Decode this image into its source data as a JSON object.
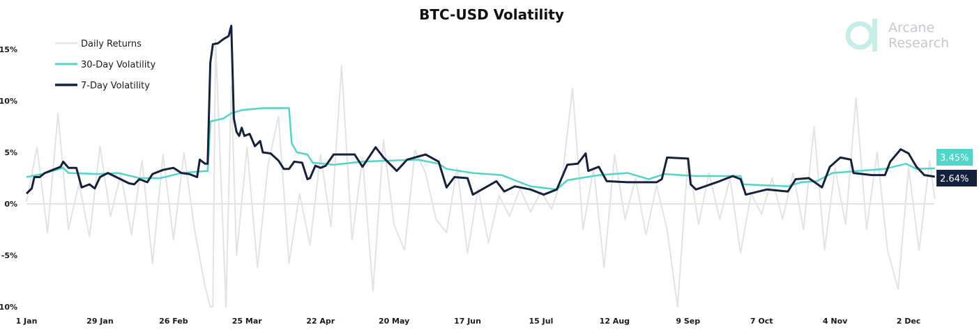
{
  "chart_data": {
    "type": "line",
    "title": "BTC-USD Volatility",
    "xlabel": "",
    "ylabel": "",
    "x_ticks": [
      "1 Jan",
      "29 Jan",
      "26 Feb",
      "25 Mar",
      "22 Apr",
      "20 May",
      "17 Jun",
      "15 Jul",
      "12 Aug",
      "9 Sep",
      "7 Oct",
      "4 Nov",
      "2 Dec"
    ],
    "y_ticks": [
      "-10%",
      "-5%",
      "0%",
      "5%",
      "10%",
      "15%"
    ],
    "y_tick_values": [
      -10,
      -5,
      0,
      5,
      10,
      15
    ],
    "ylim": [
      -10,
      17.5
    ],
    "xlim": [
      "1 Jan",
      "12 Dec"
    ],
    "grid": false,
    "legend_position": "top-left",
    "series": [
      {
        "name": "Daily Returns",
        "color": "#e3e3e3",
        "points": [
          [
            "1 Jan",
            0.2
          ],
          [
            "5 Jan",
            5.5
          ],
          [
            "9 Jan",
            -2.8
          ],
          [
            "13 Jan",
            8.8
          ],
          [
            "17 Jan",
            -2.5
          ],
          [
            "21 Jan",
            2.0
          ],
          [
            "25 Jan",
            -3.2
          ],
          [
            "29 Jan",
            5.6
          ],
          [
            "2 Feb",
            -1.2
          ],
          [
            "6 Feb",
            3.0
          ],
          [
            "10 Feb",
            -3.0
          ],
          [
            "14 Feb",
            4.2
          ],
          [
            "18 Feb",
            -5.8
          ],
          [
            "22 Feb",
            4.8
          ],
          [
            "26 Feb",
            -3.5
          ],
          [
            "1 Mar",
            5.0
          ],
          [
            "5 Mar",
            -2.5
          ],
          [
            "9 Mar",
            -8.0
          ],
          [
            "11 Mar",
            -10
          ],
          [
            "12 Mar",
            -10
          ],
          [
            "13 Mar",
            16
          ],
          [
            "17 Mar",
            -10
          ],
          [
            "19 Mar",
            11.5
          ],
          [
            "21 Mar",
            -5
          ],
          [
            "25 Mar",
            5.5
          ],
          [
            "29 Mar",
            -6.2
          ],
          [
            "2 Apr",
            3.8
          ],
          [
            "6 Apr",
            8.5
          ],
          [
            "10 Apr",
            -5.8
          ],
          [
            "14 Apr",
            1
          ],
          [
            "18 Apr",
            -4
          ],
          [
            "22 Apr",
            4.8
          ],
          [
            "26 Apr",
            -2.2
          ],
          [
            "30 Apr",
            13.4
          ],
          [
            "4 May",
            -3.5
          ],
          [
            "8 May",
            4.5
          ],
          [
            "12 May",
            -8.5
          ],
          [
            "16 May",
            6.2
          ],
          [
            "20 May",
            -2
          ],
          [
            "24 May",
            -4.5
          ],
          [
            "28 May",
            5.2
          ],
          [
            "1 Jun",
            3
          ],
          [
            "5 Jun",
            -1.5
          ],
          [
            "9 Jun",
            -2.8
          ],
          [
            "13 Jun",
            3.5
          ],
          [
            "17 Jun",
            -4.8
          ],
          [
            "21 Jun",
            1.5
          ],
          [
            "25 Jun",
            -3.8
          ],
          [
            "29 Jun",
            0.8
          ],
          [
            "3 Jul",
            -1.2
          ],
          [
            "7 Jul",
            1.5
          ],
          [
            "11 Jul",
            -0.8
          ],
          [
            "15 Jul",
            1.2
          ],
          [
            "19 Jul",
            -0.5
          ],
          [
            "23 Jul",
            2.5
          ],
          [
            "27 Jul",
            11.2
          ],
          [
            "31 Jul",
            -2.5
          ],
          [
            "4 Aug",
            3.5
          ],
          [
            "8 Aug",
            -6.2
          ],
          [
            "12 Aug",
            4.8
          ],
          [
            "16 Aug",
            -1.5
          ],
          [
            "20 Aug",
            2.5
          ],
          [
            "24 Aug",
            -3
          ],
          [
            "28 Aug",
            1.8
          ],
          [
            "1 Sep",
            -2.5
          ],
          [
            "5 Sep",
            -10
          ],
          [
            "9 Sep",
            4.5
          ],
          [
            "13 Sep",
            -2
          ],
          [
            "17 Sep",
            3
          ],
          [
            "21 Sep",
            -1.5
          ],
          [
            "25 Sep",
            2.5
          ],
          [
            "29 Sep",
            -4.8
          ],
          [
            "3 Oct",
            1
          ],
          [
            "7 Oct",
            -1
          ],
          [
            "11 Oct",
            2.5
          ],
          [
            "15 Oct",
            -1.5
          ],
          [
            "19 Oct",
            3
          ],
          [
            "23 Oct",
            -2.5
          ],
          [
            "27 Oct",
            7.5
          ],
          [
            "31 Oct",
            -4.5
          ],
          [
            "4 Nov",
            3.5
          ],
          [
            "8 Nov",
            -2
          ],
          [
            "12 Nov",
            10.3
          ],
          [
            "16 Nov",
            -2.5
          ],
          [
            "20 Nov",
            5
          ],
          [
            "24 Nov",
            -4.5
          ],
          [
            "28 Nov",
            -8.3
          ],
          [
            "2 Dec",
            3.5
          ],
          [
            "6 Dec",
            -4.5
          ],
          [
            "10 Dec",
            4.2
          ],
          [
            "12 Dec",
            0.5
          ]
        ]
      },
      {
        "name": "30-Day Volatility",
        "color": "#4fd6c8",
        "points": [
          [
            "1 Jan",
            2.6
          ],
          [
            "7 Jan",
            2.9
          ],
          [
            "15 Jan",
            3.5
          ],
          [
            "17 Jan",
            3.0
          ],
          [
            "28 Jan",
            2.9
          ],
          [
            "5 Feb",
            3.0
          ],
          [
            "13 Feb",
            2.5
          ],
          [
            "21 Feb",
            2.5
          ],
          [
            "29 Feb",
            3.0
          ],
          [
            "10 Mar",
            3.2
          ],
          [
            "11 Mar",
            8.0
          ],
          [
            "16 Mar",
            8.3
          ],
          [
            "19 Mar",
            8.8
          ],
          [
            "23 Mar",
            9.1
          ],
          [
            "31 Mar",
            9.3
          ],
          [
            "6 Apr",
            9.3
          ],
          [
            "10 Apr",
            9.3
          ],
          [
            "11 Apr",
            5.9
          ],
          [
            "13 Apr",
            5.0
          ],
          [
            "17 Apr",
            4.8
          ],
          [
            "19 Apr",
            4.0
          ],
          [
            "27 Apr",
            3.8
          ],
          [
            "8 May",
            4.1
          ],
          [
            "19 May",
            4.2
          ],
          [
            "29 May",
            4.3
          ],
          [
            "6 Jun",
            3.9
          ],
          [
            "9 Jun",
            3.4
          ],
          [
            "19 Jun",
            3.0
          ],
          [
            "30 Jun",
            2.8
          ],
          [
            "11 Jul",
            1.7
          ],
          [
            "21 Jul",
            1.4
          ],
          [
            "25 Jul",
            2.3
          ],
          [
            "6 Aug",
            2.8
          ],
          [
            "17 Aug",
            3.0
          ],
          [
            "25 Aug",
            2.4
          ],
          [
            "31 Aug",
            2.9
          ],
          [
            "12 Sep",
            2.7
          ],
          [
            "29 Sep",
            2.7
          ],
          [
            "30 Sep",
            1.9
          ],
          [
            "17 Oct",
            1.7
          ],
          [
            "22 Oct",
            2.1
          ],
          [
            "28 Oct",
            2.2
          ],
          [
            "3 Nov",
            3.0
          ],
          [
            "13 Nov",
            3.2
          ],
          [
            "23 Nov",
            3.4
          ],
          [
            "1 Dec",
            3.9
          ],
          [
            "5 Dec",
            3.4
          ],
          [
            "12 Dec",
            3.45
          ]
        ]
      },
      {
        "name": "7-Day Volatility",
        "color": "#14213d",
        "points": [
          [
            "1 Jan",
            1.0
          ],
          [
            "3 Jan",
            1.5
          ],
          [
            "4 Jan",
            2.6
          ],
          [
            "6 Jan",
            2.6
          ],
          [
            "8 Jan",
            3.0
          ],
          [
            "12 Jan",
            3.4
          ],
          [
            "14 Jan",
            3.6
          ],
          [
            "15 Jan",
            4.1
          ],
          [
            "17 Jan",
            3.5
          ],
          [
            "20 Jan",
            3.5
          ],
          [
            "22 Jan",
            1.6
          ],
          [
            "25 Jan",
            1.9
          ],
          [
            "27 Jan",
            1.5
          ],
          [
            "29 Jan",
            2.6
          ],
          [
            "1 Feb",
            3.0
          ],
          [
            "5 Feb",
            2.5
          ],
          [
            "9 Feb",
            2.0
          ],
          [
            "11 Feb",
            1.9
          ],
          [
            "13 Feb",
            2.4
          ],
          [
            "16 Feb",
            2.1
          ],
          [
            "18 Feb",
            2.9
          ],
          [
            "22 Feb",
            3.3
          ],
          [
            "26 Feb",
            3.5
          ],
          [
            "29 Feb",
            3.0
          ],
          [
            "3 Mar",
            2.9
          ],
          [
            "6 Mar",
            2.6
          ],
          [
            "7 Mar",
            4.3
          ],
          [
            "9 Mar",
            3.9
          ],
          [
            "10 Mar",
            3.9
          ],
          [
            "11 Mar",
            13.7
          ],
          [
            "12 Mar",
            15.5
          ],
          [
            "14 Mar",
            15.6
          ],
          [
            "16 Mar",
            16.0
          ],
          [
            "18 Mar",
            16.3
          ],
          [
            "19 Mar",
            17.3
          ],
          [
            "20 Mar",
            8.3
          ],
          [
            "21 Mar",
            7.0
          ],
          [
            "22 Mar",
            6.6
          ],
          [
            "23 Mar",
            7.4
          ],
          [
            "24 Mar",
            6.6
          ],
          [
            "26 Mar",
            6.8
          ],
          [
            "28 Mar",
            5.6
          ],
          [
            "30 Mar",
            6.1
          ],
          [
            "31 Mar",
            5.0
          ],
          [
            "3 Apr",
            4.9
          ],
          [
            "6 Apr",
            4.2
          ],
          [
            "8 Apr",
            3.4
          ],
          [
            "10 Apr",
            3.4
          ],
          [
            "12 Apr",
            4.1
          ],
          [
            "15 Apr",
            4.0
          ],
          [
            "17 Apr",
            2.4
          ],
          [
            "18 Apr",
            2.5
          ],
          [
            "20 Apr",
            3.7
          ],
          [
            "22 Apr",
            3.5
          ],
          [
            "24 Apr",
            3.7
          ],
          [
            "27 Apr",
            4.8
          ],
          [
            "5 May",
            4.8
          ],
          [
            "8 May",
            3.6
          ],
          [
            "13 May",
            5.5
          ],
          [
            "16 May",
            4.5
          ],
          [
            "21 May",
            3.2
          ],
          [
            "25 May",
            4.3
          ],
          [
            "1 Jun",
            4.8
          ],
          [
            "6 Jun",
            4.1
          ],
          [
            "9 Jun",
            1.6
          ],
          [
            "12 Jun",
            2.6
          ],
          [
            "17 Jun",
            2.5
          ],
          [
            "19 Jun",
            0.9
          ],
          [
            "28 Jun",
            2.2
          ],
          [
            "1 Jul",
            1.2
          ],
          [
            "5 Jul",
            1.7
          ],
          [
            "11 Jul",
            1.4
          ],
          [
            "16 Jul",
            0.9
          ],
          [
            "21 Jul",
            1.4
          ],
          [
            "25 Jul",
            3.8
          ],
          [
            "29 Jul",
            3.9
          ],
          [
            "1 Aug",
            4.9
          ],
          [
            "2 Aug",
            3.2
          ],
          [
            "6 Aug",
            3.6
          ],
          [
            "9 Aug",
            2.2
          ],
          [
            "17 Aug",
            2.1
          ],
          [
            "28 Aug",
            2.1
          ],
          [
            "30 Aug",
            2.4
          ],
          [
            "1 Sep",
            4.5
          ],
          [
            "9 Sep",
            4.4
          ],
          [
            "10 Sep",
            1.9
          ],
          [
            "12 Sep",
            1.4
          ],
          [
            "21 Sep",
            2.2
          ],
          [
            "26 Sep",
            2.7
          ],
          [
            "29 Sep",
            2.4
          ],
          [
            "1 Oct",
            0.9
          ],
          [
            "9 Oct",
            1.4
          ],
          [
            "17 Oct",
            1.2
          ],
          [
            "20 Oct",
            2.4
          ],
          [
            "25 Oct",
            2.5
          ],
          [
            "30 Oct",
            1.6
          ],
          [
            "2 Nov",
            3.6
          ],
          [
            "6 Nov",
            4.5
          ],
          [
            "10 Nov",
            4.3
          ],
          [
            "11 Nov",
            3.0
          ],
          [
            "18 Nov",
            2.8
          ],
          [
            "23 Nov",
            2.8
          ],
          [
            "25 Nov",
            4.1
          ],
          [
            "29 Nov",
            5.3
          ],
          [
            "2 Dec",
            4.9
          ],
          [
            "5 Dec",
            3.6
          ],
          [
            "8 Dec",
            2.8
          ],
          [
            "12 Dec",
            2.64
          ]
        ]
      }
    ],
    "end_labels": [
      {
        "series": "30-Day Volatility",
        "text": "3.45%",
        "value": 3.45,
        "color": "#4fd6c8"
      },
      {
        "series": "7-Day Volatility",
        "text": "2.64%",
        "value": 2.64,
        "color": "#14213d"
      }
    ]
  },
  "logo": {
    "line1": "Arcane",
    "line2": "Research",
    "color": "#c5eee9"
  }
}
